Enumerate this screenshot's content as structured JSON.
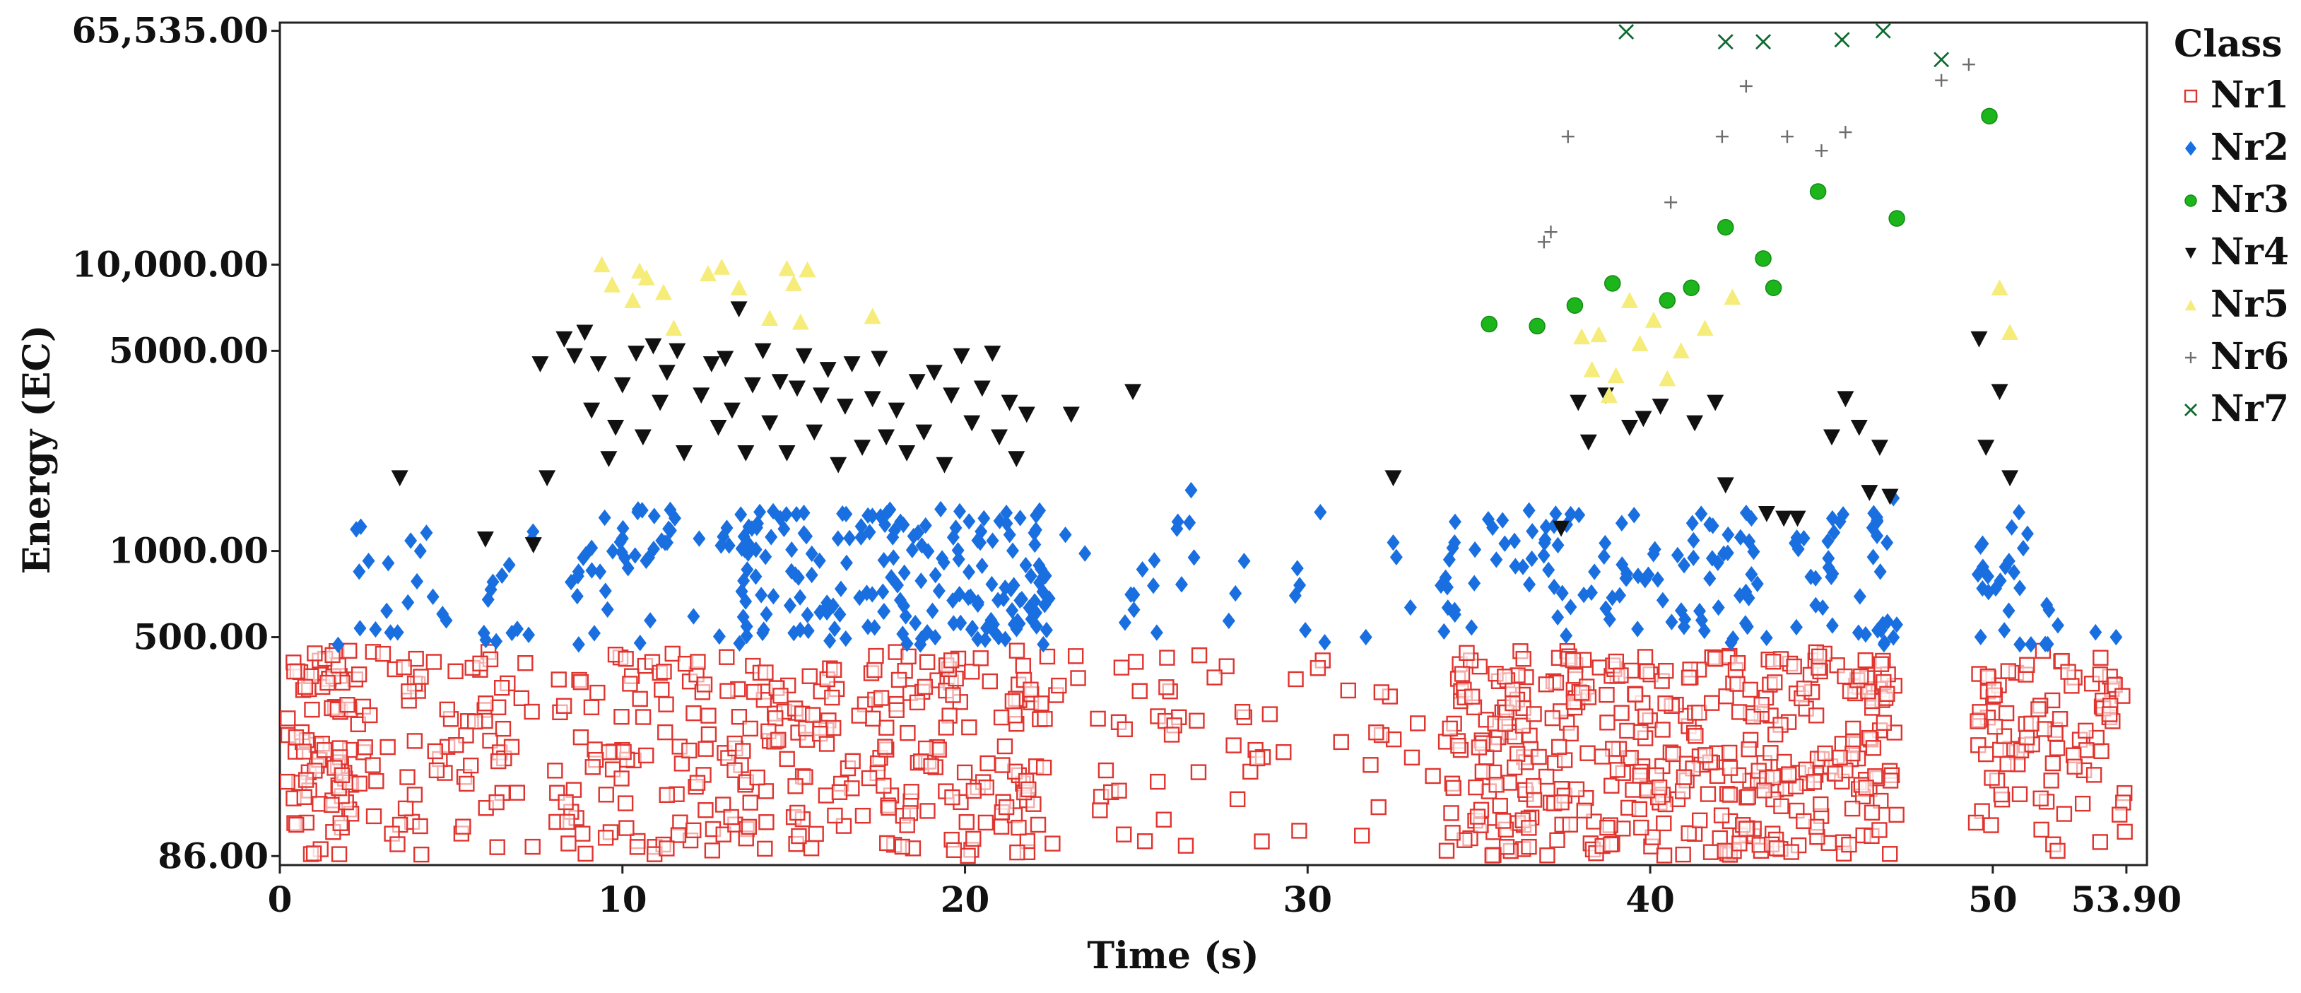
{
  "chart_data": {
    "type": "scatter",
    "title": "",
    "xlabel": "Time (s)",
    "ylabel": "Energy (EC)",
    "xlim": [
      0,
      54.5
    ],
    "ylim": [
      80,
      70000
    ],
    "yscale": "log",
    "grid": false,
    "x_ticks": [
      0,
      10,
      20,
      30,
      40,
      50,
      53.9
    ],
    "x_tick_labels": [
      "0",
      "10",
      "20",
      "30",
      "40",
      "50",
      "53.90"
    ],
    "y_ticks": [
      86,
      500,
      1000,
      5000,
      10000,
      65535
    ],
    "y_tick_labels": [
      "86.00",
      "500.00",
      "1000.00",
      "5000.00",
      "10,000.00",
      "65,535.00"
    ],
    "legend": {
      "title": "Class",
      "placement": "right",
      "entries": [
        "Nr1",
        "Nr2",
        "Nr3",
        "Nr4",
        "Nr5",
        "Nr6",
        "Nr7"
      ]
    },
    "series": [
      {
        "name": "Nr1",
        "marker": "open-square",
        "color": "#e0342f",
        "note": "dense band 86-450 EC; generated points follow",
        "segments": [
          [
            0.2,
            2.5,
            90
          ],
          [
            2.5,
            7.5,
            70
          ],
          [
            8,
            13.5,
            95
          ],
          [
            13.5,
            22.5,
            190
          ],
          [
            22.5,
            26,
            25
          ],
          [
            26,
            30,
            22
          ],
          [
            29.5,
            34,
            14
          ],
          [
            34,
            47.2,
            400
          ],
          [
            49.5,
            53.9,
            90
          ]
        ],
        "points": [
          [
            10.1,
            420
          ],
          [
            12.2,
            410
          ],
          [
            17.4,
            430
          ],
          [
            19.6,
            415
          ],
          [
            30.3,
            390
          ],
          [
            36.3,
            420
          ],
          [
            41.9,
            420
          ],
          [
            44.2,
            395
          ],
          [
            51.0,
            400
          ],
          [
            53.7,
            120
          ]
        ]
      },
      {
        "name": "Nr2",
        "marker": "diamond",
        "color": "#1a6fe0",
        "note": "band 450-2000 EC; generated points follow",
        "segments": [
          [
            1.7,
            7.5,
            30
          ],
          [
            8.5,
            12.3,
            40
          ],
          [
            12.8,
            22.5,
            190
          ],
          [
            22.8,
            27,
            14
          ],
          [
            27.5,
            33.8,
            8
          ],
          [
            33.8,
            47.2,
            140
          ],
          [
            49.5,
            51.7,
            26
          ]
        ],
        "points": [
          [
            1.7,
            470
          ],
          [
            4.1,
            1000
          ],
          [
            23.5,
            980
          ],
          [
            26.6,
            1630
          ],
          [
            27.7,
            570
          ],
          [
            29.7,
            870
          ],
          [
            30.5,
            480
          ],
          [
            31.7,
            500
          ],
          [
            32.5,
            1070
          ],
          [
            34.3,
            600
          ],
          [
            47.1,
            1530
          ],
          [
            51.9,
            550
          ],
          [
            53.0,
            520
          ],
          [
            53.6,
            500
          ]
        ]
      },
      {
        "name": "Nr3",
        "marker": "circle",
        "color": "#1cb51c",
        "points": [
          [
            35.3,
            6200
          ],
          [
            36.7,
            6100
          ],
          [
            37.8,
            7200
          ],
          [
            38.9,
            8600
          ],
          [
            40.5,
            7500
          ],
          [
            41.2,
            8300
          ],
          [
            42.2,
            13500
          ],
          [
            43.3,
            10500
          ],
          [
            43.6,
            8300
          ],
          [
            44.9,
            18000
          ],
          [
            47.2,
            14500
          ],
          [
            49.9,
            33000
          ]
        ]
      },
      {
        "name": "Nr4",
        "marker": "triangle-down",
        "color": "#111111",
        "points": [
          [
            3.5,
            1800
          ],
          [
            6.0,
            1100
          ],
          [
            7.4,
            1050
          ],
          [
            7.6,
            4500
          ],
          [
            7.8,
            1800
          ],
          [
            8.3,
            5500
          ],
          [
            8.6,
            4800
          ],
          [
            8.9,
            5800
          ],
          [
            9.1,
            3100
          ],
          [
            9.3,
            4500
          ],
          [
            9.6,
            2100
          ],
          [
            9.8,
            2700
          ],
          [
            10.0,
            3800
          ],
          [
            10.4,
            4900
          ],
          [
            10.6,
            2500
          ],
          [
            10.9,
            5200
          ],
          [
            11.1,
            3300
          ],
          [
            11.3,
            4200
          ],
          [
            11.6,
            5000
          ],
          [
            11.8,
            2200
          ],
          [
            12.3,
            3500
          ],
          [
            12.6,
            4500
          ],
          [
            12.8,
            2700
          ],
          [
            13.0,
            4700
          ],
          [
            13.2,
            3100
          ],
          [
            13.4,
            7000
          ],
          [
            13.6,
            2200
          ],
          [
            13.8,
            3800
          ],
          [
            14.1,
            5000
          ],
          [
            14.3,
            2800
          ],
          [
            14.6,
            3900
          ],
          [
            14.8,
            2200
          ],
          [
            15.1,
            3700
          ],
          [
            15.3,
            4800
          ],
          [
            15.6,
            2600
          ],
          [
            15.8,
            3500
          ],
          [
            16.0,
            4300
          ],
          [
            16.3,
            2000
          ],
          [
            16.5,
            3200
          ],
          [
            16.7,
            4500
          ],
          [
            17.0,
            2300
          ],
          [
            17.3,
            3400
          ],
          [
            17.5,
            4700
          ],
          [
            17.7,
            2500
          ],
          [
            18.0,
            3100
          ],
          [
            18.3,
            2200
          ],
          [
            18.6,
            3900
          ],
          [
            18.8,
            2600
          ],
          [
            19.1,
            4200
          ],
          [
            19.4,
            2000
          ],
          [
            19.6,
            3500
          ],
          [
            19.9,
            4800
          ],
          [
            20.2,
            2800
          ],
          [
            20.5,
            3700
          ],
          [
            20.8,
            4900
          ],
          [
            21.0,
            2500
          ],
          [
            21.3,
            3300
          ],
          [
            21.5,
            2100
          ],
          [
            21.8,
            3000
          ],
          [
            23.1,
            3000
          ],
          [
            24.9,
            3600
          ],
          [
            32.5,
            1800
          ],
          [
            37.4,
            1200
          ],
          [
            37.9,
            3300
          ],
          [
            38.2,
            2400
          ],
          [
            38.7,
            3500
          ],
          [
            39.4,
            2700
          ],
          [
            39.8,
            2900
          ],
          [
            40.3,
            3200
          ],
          [
            41.3,
            2800
          ],
          [
            41.9,
            3300
          ],
          [
            42.2,
            1700
          ],
          [
            43.4,
            1350
          ],
          [
            43.9,
            1300
          ],
          [
            44.3,
            1300
          ],
          [
            45.3,
            2500
          ],
          [
            45.7,
            3400
          ],
          [
            46.1,
            2700
          ],
          [
            46.4,
            1600
          ],
          [
            46.7,
            2300
          ],
          [
            47.0,
            1550
          ],
          [
            49.6,
            5500
          ],
          [
            49.8,
            2300
          ],
          [
            50.2,
            3600
          ],
          [
            50.5,
            1800
          ]
        ]
      },
      {
        "name": "Nr5",
        "marker": "triangle-up",
        "color": "#f5ec7a",
        "points": [
          [
            9.4,
            10000
          ],
          [
            9.7,
            8500
          ],
          [
            10.3,
            7500
          ],
          [
            10.5,
            9500
          ],
          [
            10.7,
            9000
          ],
          [
            11.2,
            8000
          ],
          [
            11.5,
            6000
          ],
          [
            12.5,
            9300
          ],
          [
            12.9,
            9800
          ],
          [
            13.4,
            8300
          ],
          [
            14.3,
            6500
          ],
          [
            14.8,
            9700
          ],
          [
            15.0,
            8600
          ],
          [
            15.2,
            6300
          ],
          [
            15.4,
            9600
          ],
          [
            17.3,
            6600
          ],
          [
            38.0,
            5600
          ],
          [
            38.3,
            4300
          ],
          [
            38.5,
            5700
          ],
          [
            38.8,
            3500
          ],
          [
            39.0,
            4100
          ],
          [
            39.4,
            7500
          ],
          [
            39.7,
            5300
          ],
          [
            40.1,
            6400
          ],
          [
            40.5,
            4000
          ],
          [
            40.9,
            5000
          ],
          [
            41.6,
            6000
          ],
          [
            42.4,
            7700
          ],
          [
            50.2,
            8300
          ],
          [
            50.5,
            5800
          ]
        ]
      },
      {
        "name": "Nr6",
        "marker": "plus",
        "color": "#6e6e6e",
        "points": [
          [
            36.9,
            12000
          ],
          [
            37.1,
            13000
          ],
          [
            37.6,
            28000
          ],
          [
            40.6,
            16500
          ],
          [
            42.1,
            28000
          ],
          [
            42.8,
            42000
          ],
          [
            44.0,
            28000
          ],
          [
            45.0,
            25000
          ],
          [
            45.7,
            29000
          ],
          [
            48.5,
            44000
          ],
          [
            49.3,
            50000
          ]
        ]
      },
      {
        "name": "Nr7",
        "marker": "x",
        "color": "#0d6b2f",
        "points": [
          [
            39.3,
            65000
          ],
          [
            42.2,
            60000
          ],
          [
            43.3,
            60000
          ],
          [
            45.6,
            61000
          ],
          [
            46.8,
            65500
          ],
          [
            48.5,
            52000
          ]
        ]
      }
    ]
  }
}
